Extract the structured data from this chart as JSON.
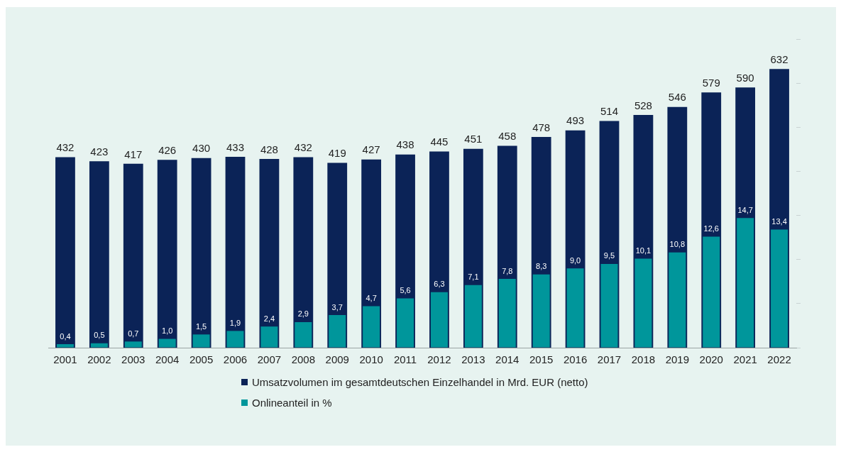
{
  "chart_data": {
    "type": "bar",
    "categories": [
      "2001",
      "2002",
      "2003",
      "2004",
      "2005",
      "2006",
      "2007",
      "2008",
      "2009",
      "2010",
      "2011",
      "2012",
      "2013",
      "2014",
      "2015",
      "2016",
      "2017",
      "2018",
      "2019",
      "2020",
      "2021",
      "2022"
    ],
    "series": [
      {
        "name": "Umsatzvolumen im gesamtdeutschen Einzelhandel in Mrd. EUR (netto)",
        "color": "#0b2357",
        "values": [
          432,
          423,
          417,
          426,
          430,
          433,
          428,
          432,
          419,
          427,
          438,
          445,
          451,
          458,
          478,
          493,
          514,
          528,
          546,
          579,
          590,
          632
        ],
        "value_labels": [
          "432",
          "423",
          "417",
          "426",
          "430",
          "433",
          "428",
          "432",
          "419",
          "427",
          "438",
          "445",
          "451",
          "458",
          "478",
          "493",
          "514",
          "528",
          "546",
          "579",
          "590",
          "632"
        ]
      },
      {
        "name": "Onlineanteil in %",
        "color": "#00969b",
        "axis": "y2",
        "values": [
          0.4,
          0.5,
          0.7,
          1.0,
          1.5,
          1.9,
          2.4,
          2.9,
          3.7,
          4.7,
          5.6,
          6.3,
          7.1,
          7.8,
          8.3,
          9.0,
          9.5,
          10.1,
          10.8,
          12.6,
          14.7,
          13.4
        ],
        "value_labels": [
          "0,4",
          "0,5",
          "0,7",
          "1,0",
          "1,5",
          "1,9",
          "2,4",
          "2,9",
          "3,7",
          "4,7",
          "5,6",
          "6,3",
          "7,1",
          "7,8",
          "8,3",
          "9,0",
          "9,5",
          "10,1",
          "10,8",
          "12,6",
          "14,7",
          "13,4"
        ]
      }
    ],
    "tick_labels": "x",
    "grid": false,
    "legend": "bottom"
  }
}
